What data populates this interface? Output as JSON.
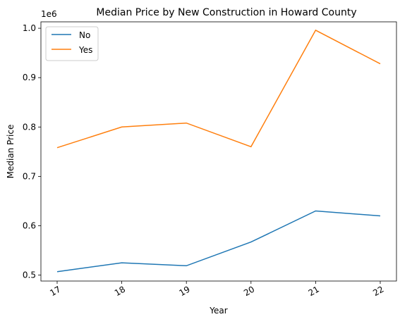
{
  "chart_data": {
    "type": "line",
    "title": "Median Price by New Construction in Howard County",
    "xlabel": "Year",
    "ylabel": "Median Price",
    "y_offset_label": "1e6",
    "categories": [
      "17",
      "18",
      "19",
      "20",
      "21",
      "22"
    ],
    "series": [
      {
        "name": "No",
        "color": "#1f77b4",
        "values": [
          0.507,
          0.525,
          0.519,
          0.567,
          0.63,
          0.62
        ]
      },
      {
        "name": "Yes",
        "color": "#ff7f0e",
        "values": [
          0.758,
          0.8,
          0.808,
          0.76,
          0.996,
          0.928
        ]
      }
    ],
    "yticks": [
      "0.5",
      "0.6",
      "0.7",
      "0.8",
      "0.9",
      "1.0"
    ],
    "ylim": [
      0.488,
      1.013
    ],
    "grid": false,
    "legend_position": "top-left"
  }
}
